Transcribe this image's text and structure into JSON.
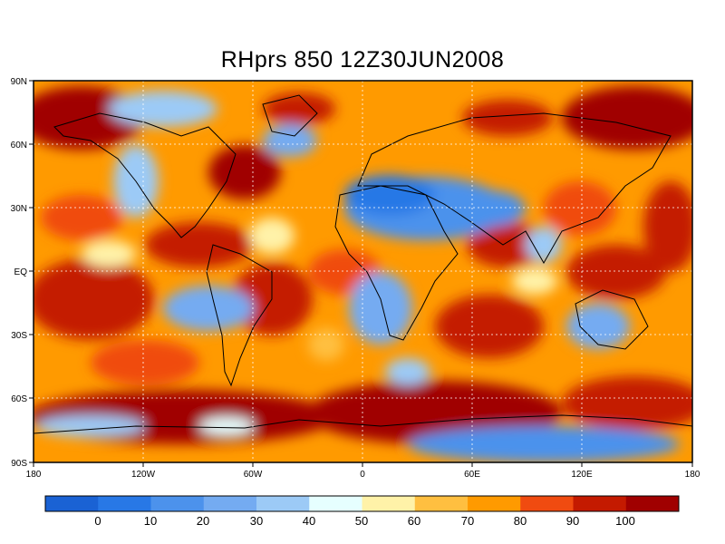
{
  "title": "RHprs 850  12Z30JUN2008",
  "lon_labels": [
    "180",
    "120W",
    "60W",
    "0",
    "60E",
    "120E",
    "180"
  ],
  "lat_labels": [
    "90N",
    "60N",
    "30N",
    "EQ",
    "30S",
    "60S",
    "90S"
  ],
  "colorbar": {
    "colors": [
      "#1a62d4",
      "#2878e6",
      "#4c92ec",
      "#74abf1",
      "#9ccaf6",
      "#e6ffff",
      "#fff2a8",
      "#ffbf40",
      "#ff9a00",
      "#f04b10",
      "#c41a00",
      "#a00000"
    ],
    "labels": [
      "0",
      "10",
      "20",
      "30",
      "40",
      "50",
      "60",
      "70",
      "80",
      "90",
      "100"
    ]
  }
}
